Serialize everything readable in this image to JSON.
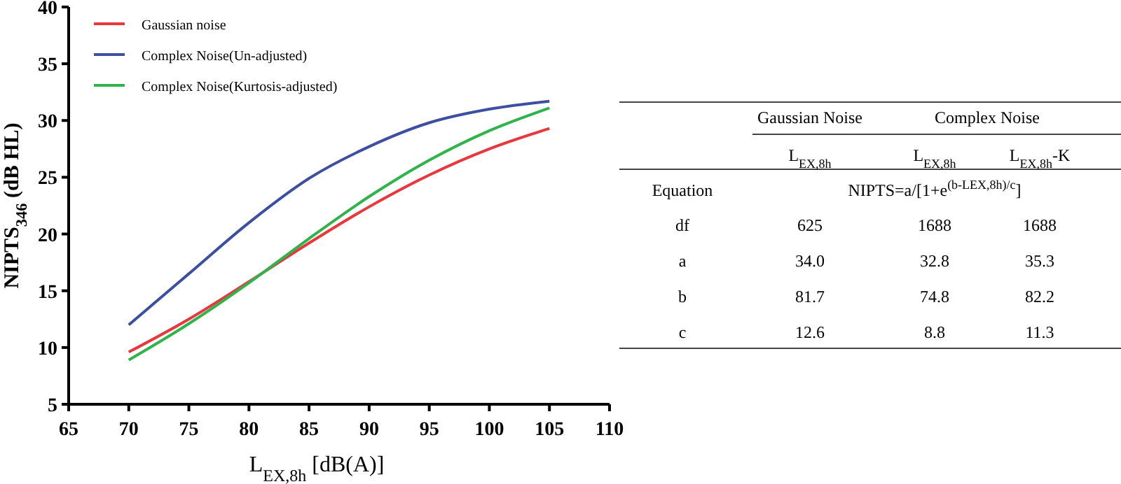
{
  "chart_data": [
    {
      "type": "line",
      "xlabel": "L$_{EX,8h}$ [dB(A)]",
      "ylabel": "NIPTS$_{346}$ (dB HL)",
      "x": [
        70,
        75,
        80,
        85,
        90,
        95,
        100,
        105
      ],
      "series": [
        {
          "name": "Gaussian noise",
          "color": "#e8383d",
          "values": [
            9.6,
            12.5,
            15.8,
            19.2,
            22.4,
            25.2,
            27.5,
            29.3
          ]
        },
        {
          "name": "Complex Noise(Un-adjusted)",
          "color": "#3c4fa0",
          "values": [
            12.0,
            16.5,
            21.0,
            24.9,
            27.7,
            29.8,
            31.0,
            31.7
          ]
        },
        {
          "name": "Complex Noise(Kurtosis-adjusted)",
          "color": "#2fb34a",
          "values": [
            8.9,
            12.1,
            15.7,
            19.6,
            23.3,
            26.5,
            29.1,
            31.1
          ]
        }
      ],
      "xlim": [
        65,
        110
      ],
      "xticks": [
        65,
        70,
        75,
        80,
        85,
        90,
        95,
        100,
        105,
        110
      ],
      "ylim": [
        5,
        40
      ],
      "yticks": [
        5,
        10,
        15,
        20,
        25,
        30,
        35,
        40
      ],
      "legend": "top left"
    },
    {
      "type": "other",
      "annotations": [
        "Gaussian Noise",
        "Complex Noise",
        "L$_{EX,8h}$",
        "L$_{EX,8h}$",
        "L$_{EX,8h}$-K",
        "Equation",
        "NIPTS=a/[1+e$^{(b-LEX,8h)/c}$]",
        "df",
        "625",
        "1688",
        "1688",
        "a",
        "34.0",
        "32.8",
        "35.3",
        "b",
        "81.7",
        "74.8",
        "82.2",
        "c",
        "12.6",
        "8.8",
        "11.3"
      ]
    }
  ]
}
